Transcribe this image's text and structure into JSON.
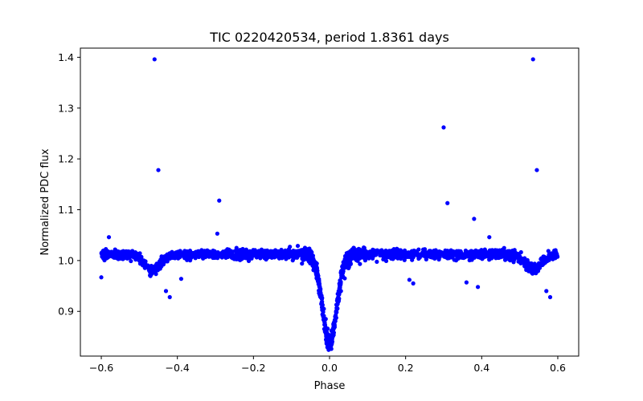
{
  "chart_data": {
    "type": "scatter",
    "title": "TIC 0220420534, period 1.8361 days",
    "xlabel": "Phase",
    "ylabel": "Normalized PDC flux",
    "xlim": [
      -0.655,
      0.655
    ],
    "ylim": [
      0.812,
      1.418
    ],
    "xticks": [
      -0.6,
      -0.4,
      -0.2,
      0.0,
      0.2,
      0.4,
      0.6
    ],
    "xtick_labels": [
      "−0.6",
      "−0.4",
      "−0.2",
      "0.0",
      "0.2",
      "0.4",
      "0.6"
    ],
    "yticks": [
      0.9,
      1.0,
      1.1,
      1.2,
      1.3,
      1.4
    ],
    "ytick_labels": [
      "0.9",
      "1.0",
      "1.1",
      "1.2",
      "1.3",
      "1.4"
    ],
    "grid": false,
    "marker_color": "#0000ff",
    "model": {
      "description": "phase-folded light curve: baseline ~1.01 with primary eclipse at phase 0 (min ~0.83) and shallow secondary dips near phase ±0.5",
      "baseline": 1.012,
      "primary_eclipse": {
        "center": 0.0,
        "depth": 0.178,
        "width": 0.026
      },
      "secondary_eclipse": {
        "centers": [
          -0.465,
          0.535
        ],
        "depth": 0.03,
        "width": 0.03
      },
      "scatter_sigma": 0.0045
    },
    "series": [
      {
        "name": "eclipse branch",
        "x": [
          -0.055,
          -0.045,
          -0.035,
          -0.03,
          -0.025,
          -0.02,
          -0.015,
          -0.01,
          -0.005,
          0.0,
          0.005,
          0.01,
          0.015,
          0.02,
          0.025,
          0.03,
          0.04,
          0.05
        ],
        "y": [
          1.006,
          0.996,
          0.975,
          0.962,
          0.945,
          0.925,
          0.905,
          0.885,
          0.866,
          0.85,
          0.862,
          0.875,
          0.89,
          0.905,
          0.925,
          0.94,
          0.965,
          0.985
        ]
      },
      {
        "name": "outliers",
        "x": [
          -0.46,
          -0.45,
          -0.43,
          -0.42,
          -0.39,
          -0.29,
          -0.295,
          -0.6,
          -0.58,
          0.3,
          0.31,
          0.38,
          0.39,
          0.42,
          0.36,
          0.535,
          0.545,
          0.57,
          0.58,
          0.21,
          0.22
        ],
        "y": [
          1.396,
          1.178,
          0.94,
          0.928,
          0.964,
          1.118,
          1.053,
          0.967,
          1.046,
          1.262,
          1.113,
          1.082,
          0.948,
          1.046,
          0.957,
          1.396,
          1.178,
          0.94,
          0.928,
          0.962,
          0.955
        ]
      }
    ]
  }
}
